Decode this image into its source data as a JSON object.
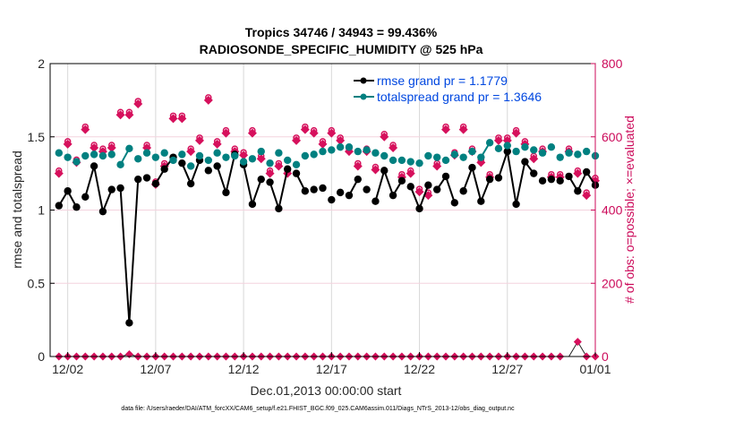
{
  "chart_data": {
    "type": "line",
    "title": [
      "Tropics 34746 / 34943 = 99.436%",
      "RADIOSONDE_SPECIFIC_HUMIDITY @ 525 hPa"
    ],
    "xlabel": "Dec.01,2013 00:00:00 start",
    "ylabel": "rmse and totalspread",
    "y2label": "# of obs: o=possible; ×=evaluated",
    "footnote": "data file: /Users/raeder/DAI/ATM_forcXX/CAM6_setup/f.e21.FHIST_BGC.f09_025.CAM6assim.011/Diags_NTrS_2013-12/obs_diag_output.nc",
    "xlim_days": [
      0,
      31
    ],
    "ylim": [
      0,
      2
    ],
    "y2lim": [
      0,
      800
    ],
    "yticks": [
      "0",
      "0.5",
      "1",
      "1.5",
      "2"
    ],
    "y2ticks": [
      "0",
      "200",
      "400",
      "600",
      "800"
    ],
    "xticks": [
      {
        "day": 1,
        "label": "12/02"
      },
      {
        "day": 6,
        "label": "12/07"
      },
      {
        "day": 11,
        "label": "12/12"
      },
      {
        "day": 16,
        "label": "12/17"
      },
      {
        "day": 21,
        "label": "12/22"
      },
      {
        "day": 26,
        "label": "12/27"
      },
      {
        "day": 31,
        "label": "01/01"
      }
    ],
    "grid": true,
    "legend_position": "top-right",
    "colors": {
      "rmse": "#000000",
      "spread": "#008080",
      "obs": "#d6105c",
      "legend_text": "#0047e0",
      "right_axis": "#cc0a5a"
    },
    "x_days": [
      0.5,
      1,
      1.5,
      2,
      2.5,
      3,
      3.5,
      4,
      4.5,
      5,
      5.5,
      6,
      6.5,
      7,
      7.5,
      8,
      8.5,
      9,
      9.5,
      10,
      10.5,
      11,
      11.5,
      12,
      12.5,
      13,
      13.5,
      14,
      14.5,
      15,
      15.5,
      16,
      16.5,
      17,
      17.5,
      18,
      18.5,
      19,
      19.5,
      20,
      20.5,
      21,
      21.5,
      22,
      22.5,
      23,
      23.5,
      24,
      24.5,
      25,
      25.5,
      26,
      26.5,
      27,
      27.5,
      28,
      28.5,
      29,
      29.5,
      30,
      30.5,
      31
    ],
    "series": [
      {
        "name": "rmse grand pr = 1.1779",
        "key": "rmse",
        "values": [
          1.03,
          1.13,
          1.02,
          1.09,
          1.3,
          0.99,
          1.14,
          1.15,
          0.23,
          1.21,
          1.22,
          1.18,
          1.28,
          1.36,
          1.32,
          1.18,
          1.34,
          1.27,
          1.3,
          1.12,
          1.38,
          1.31,
          1.04,
          1.21,
          1.19,
          1.01,
          1.28,
          1.25,
          1.13,
          1.14,
          1.15,
          1.07,
          1.12,
          1.1,
          1.21,
          1.14,
          1.06,
          1.27,
          1.1,
          1.2,
          1.16,
          1.01,
          1.17,
          1.14,
          1.23,
          1.05,
          1.13,
          1.29,
          1.06,
          1.21,
          1.22,
          1.4,
          1.04,
          1.33,
          1.25,
          1.2,
          1.21,
          1.2,
          1.23,
          1.13,
          1.26,
          1.17
        ]
      },
      {
        "name": "totalspread grand pr = 1.3646",
        "key": "spread",
        "values": [
          1.39,
          1.36,
          1.33,
          1.37,
          1.38,
          1.37,
          1.38,
          1.31,
          1.42,
          1.35,
          1.39,
          1.36,
          1.39,
          1.34,
          1.38,
          1.3,
          1.37,
          1.34,
          1.39,
          1.36,
          1.37,
          1.33,
          1.35,
          1.4,
          1.32,
          1.39,
          1.34,
          1.31,
          1.37,
          1.38,
          1.4,
          1.41,
          1.43,
          1.43,
          1.4,
          1.41,
          1.39,
          1.37,
          1.34,
          1.34,
          1.33,
          1.32,
          1.37,
          1.36,
          1.34,
          1.38,
          1.36,
          1.4,
          1.36,
          1.46,
          1.42,
          1.44,
          1.4,
          1.43,
          1.41,
          1.39,
          1.43,
          1.36,
          1.39,
          1.38,
          1.4,
          1.37
        ]
      }
    ],
    "obs_possible": [
      500,
      580,
      530,
      620,
      570,
      560,
      570,
      660,
      660,
      690,
      570,
      470,
      520,
      650,
      650,
      560,
      590,
      700,
      580,
      610,
      560,
      550,
      610,
      540,
      500,
      520,
      500,
      590,
      620,
      610,
      580,
      610,
      590,
      560,
      520,
      560,
      510,
      600,
      570,
      490,
      500,
      450,
      440,
      520,
      620,
      550,
      620,
      560,
      530,
      490,
      590,
      590,
      610,
      580,
      540,
      560,
      490,
      490,
      560,
      500,
      440,
      480
    ],
    "obs_evaluated": [
      0,
      0,
      0,
      0,
      0,
      0,
      0,
      0,
      6,
      0,
      0,
      0,
      0,
      0,
      0,
      0,
      0,
      0,
      0,
      0,
      0,
      0,
      0,
      0,
      0,
      0,
      0,
      0,
      0,
      0,
      0,
      0,
      0,
      0,
      0,
      0,
      0,
      0,
      0,
      0,
      0,
      0,
      0,
      0,
      0,
      0,
      0,
      0,
      0,
      0,
      0,
      0,
      0,
      0,
      0,
      0,
      0,
      0,
      0,
      40,
      0,
      0
    ],
    "obs_bottom_missing_days": [
      29.5
    ]
  }
}
